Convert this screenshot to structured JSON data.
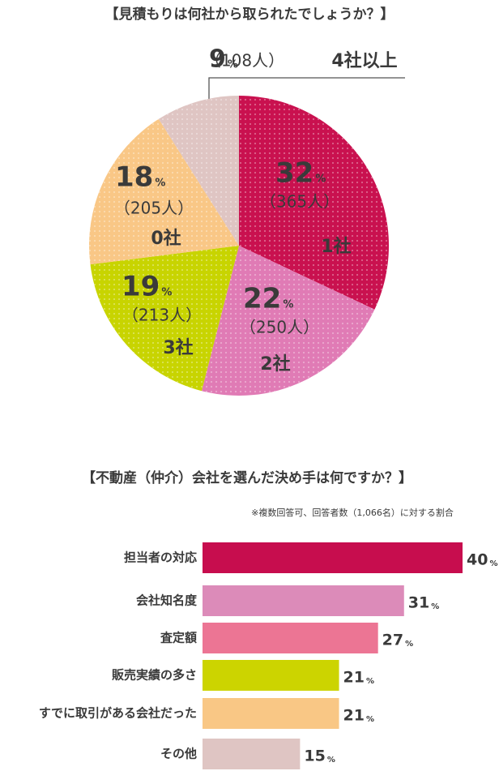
{
  "chart_data": [
    {
      "type": "pie",
      "title": "【見積もりは何社から取られたでしょうか？】",
      "unit": "%",
      "categories": [
        "1社",
        "2社",
        "3社",
        "0社",
        "4社以上"
      ],
      "values": [
        32,
        22,
        19,
        18,
        9
      ],
      "counts": [
        "（365人）",
        "（250人）",
        "（213人）",
        "（205人）",
        "（108人）"
      ],
      "colors": [
        "#c9114f",
        "#e07bb5",
        "#c8d400",
        "#f9c786",
        "#dfc5c3"
      ]
    },
    {
      "type": "hbar",
      "title": "【不動産（仲介）会社を選んだ決め手は何ですか？】",
      "note": "※複数回答可、回答者数（1,066名）に対する割合",
      "unit": "%",
      "categories": [
        "担当者の対応",
        "会社知名度",
        "査定額",
        "販売実績の多さ",
        "すでに取引がある会社だった",
        "その他"
      ],
      "values": [
        40,
        31,
        27,
        21,
        21,
        15
      ],
      "colors": [
        "#c70d4e",
        "#dc8bb9",
        "#ec7594",
        "#ccd400",
        "#f9c785",
        "#dfc5c3"
      ],
      "xlim": [
        0,
        40
      ]
    }
  ]
}
